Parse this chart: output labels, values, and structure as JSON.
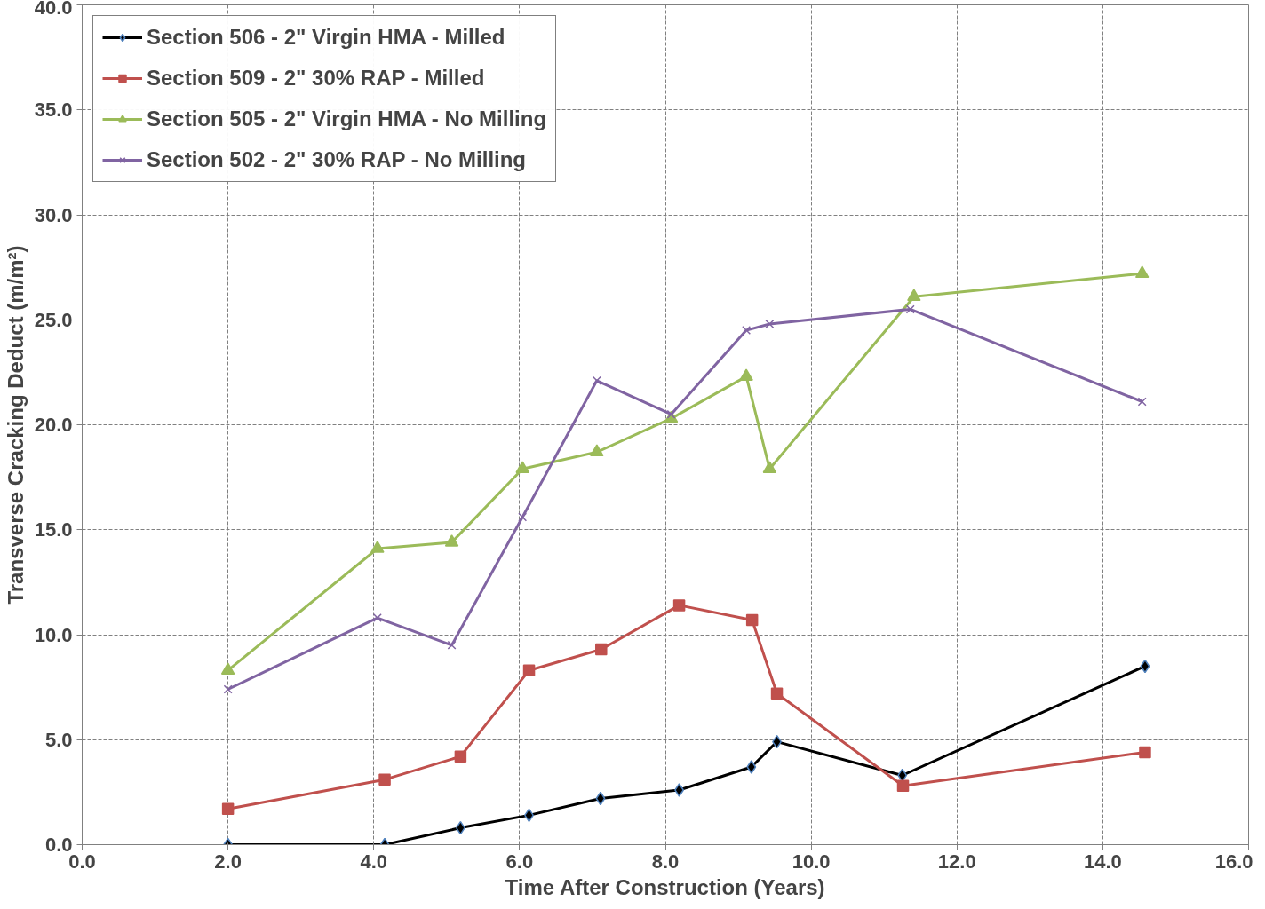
{
  "chart_data": {
    "type": "line",
    "xlabel": "Time After Construction (Years)",
    "ylabel": "Transverse Cracking Deduct (m/m²)",
    "xlim": [
      0,
      16
    ],
    "ylim": [
      0,
      40
    ],
    "xticks": [
      {
        "value": 0,
        "label": "0.0"
      },
      {
        "value": 2,
        "label": "2.0"
      },
      {
        "value": 4,
        "label": "4.0"
      },
      {
        "value": 6,
        "label": "6.0"
      },
      {
        "value": 8,
        "label": "8.0"
      },
      {
        "value": 10,
        "label": "10.0"
      },
      {
        "value": 12,
        "label": "12.0"
      },
      {
        "value": 14,
        "label": "14.0"
      },
      {
        "value": 16,
        "label": "16.0"
      }
    ],
    "yticks": [
      {
        "value": 0,
        "label": "0.0"
      },
      {
        "value": 5,
        "label": "5.0"
      },
      {
        "value": 10,
        "label": "10.0"
      },
      {
        "value": 15,
        "label": "15.0"
      },
      {
        "value": 20,
        "label": "20.0"
      },
      {
        "value": 25,
        "label": "25.0"
      },
      {
        "value": 30,
        "label": "30.0"
      },
      {
        "value": 35,
        "label": "35.0"
      },
      {
        "value": 40,
        "label": "40.0"
      }
    ],
    "grid": true,
    "legend": "top left",
    "line_style": "solid",
    "series": [
      {
        "name": "Section 506 - 2\" Virgin HMA - Milled",
        "color": "#000000",
        "marker": "diamond",
        "x": [
          2.0,
          4.15,
          5.19,
          6.13,
          7.11,
          8.19,
          9.18,
          9.53,
          11.25,
          14.58
        ],
        "values": [
          0,
          0,
          0.8,
          1.4,
          2.2,
          2.6,
          3.7,
          4.9,
          3.3,
          8.5
        ]
      },
      {
        "name": "Section 509 - 2\" 30% RAP - Milled",
        "color": "#c0504d",
        "marker": "square",
        "x": [
          2.0,
          4.15,
          5.19,
          6.13,
          7.12,
          8.19,
          9.19,
          9.53,
          11.26,
          14.58
        ],
        "values": [
          1.7,
          3.1,
          4.2,
          8.3,
          9.3,
          11.4,
          10.7,
          7.2,
          2.8,
          4.4
        ]
      },
      {
        "name": "Section 505 - 2\" Virgin HMA - No Milling",
        "color": "#9bbb59",
        "marker": "triangle",
        "x": [
          2.0,
          4.05,
          5.07,
          6.04,
          7.06,
          8.08,
          9.11,
          9.43,
          11.41,
          14.54
        ],
        "values": [
          8.3,
          14.1,
          14.4,
          17.9,
          18.7,
          20.3,
          22.3,
          17.9,
          26.1,
          27.2
        ]
      },
      {
        "name": "Section 502 - 2\" 30% RAP - No Milling",
        "color": "#8064a2",
        "marker": "cross",
        "x": [
          2.0,
          4.05,
          5.07,
          6.04,
          7.06,
          8.08,
          9.11,
          9.43,
          11.36,
          14.54
        ],
        "values": [
          7.4,
          10.8,
          9.5,
          15.6,
          22.1,
          20.5,
          24.5,
          24.8,
          25.5,
          21.1
        ]
      }
    ]
  }
}
